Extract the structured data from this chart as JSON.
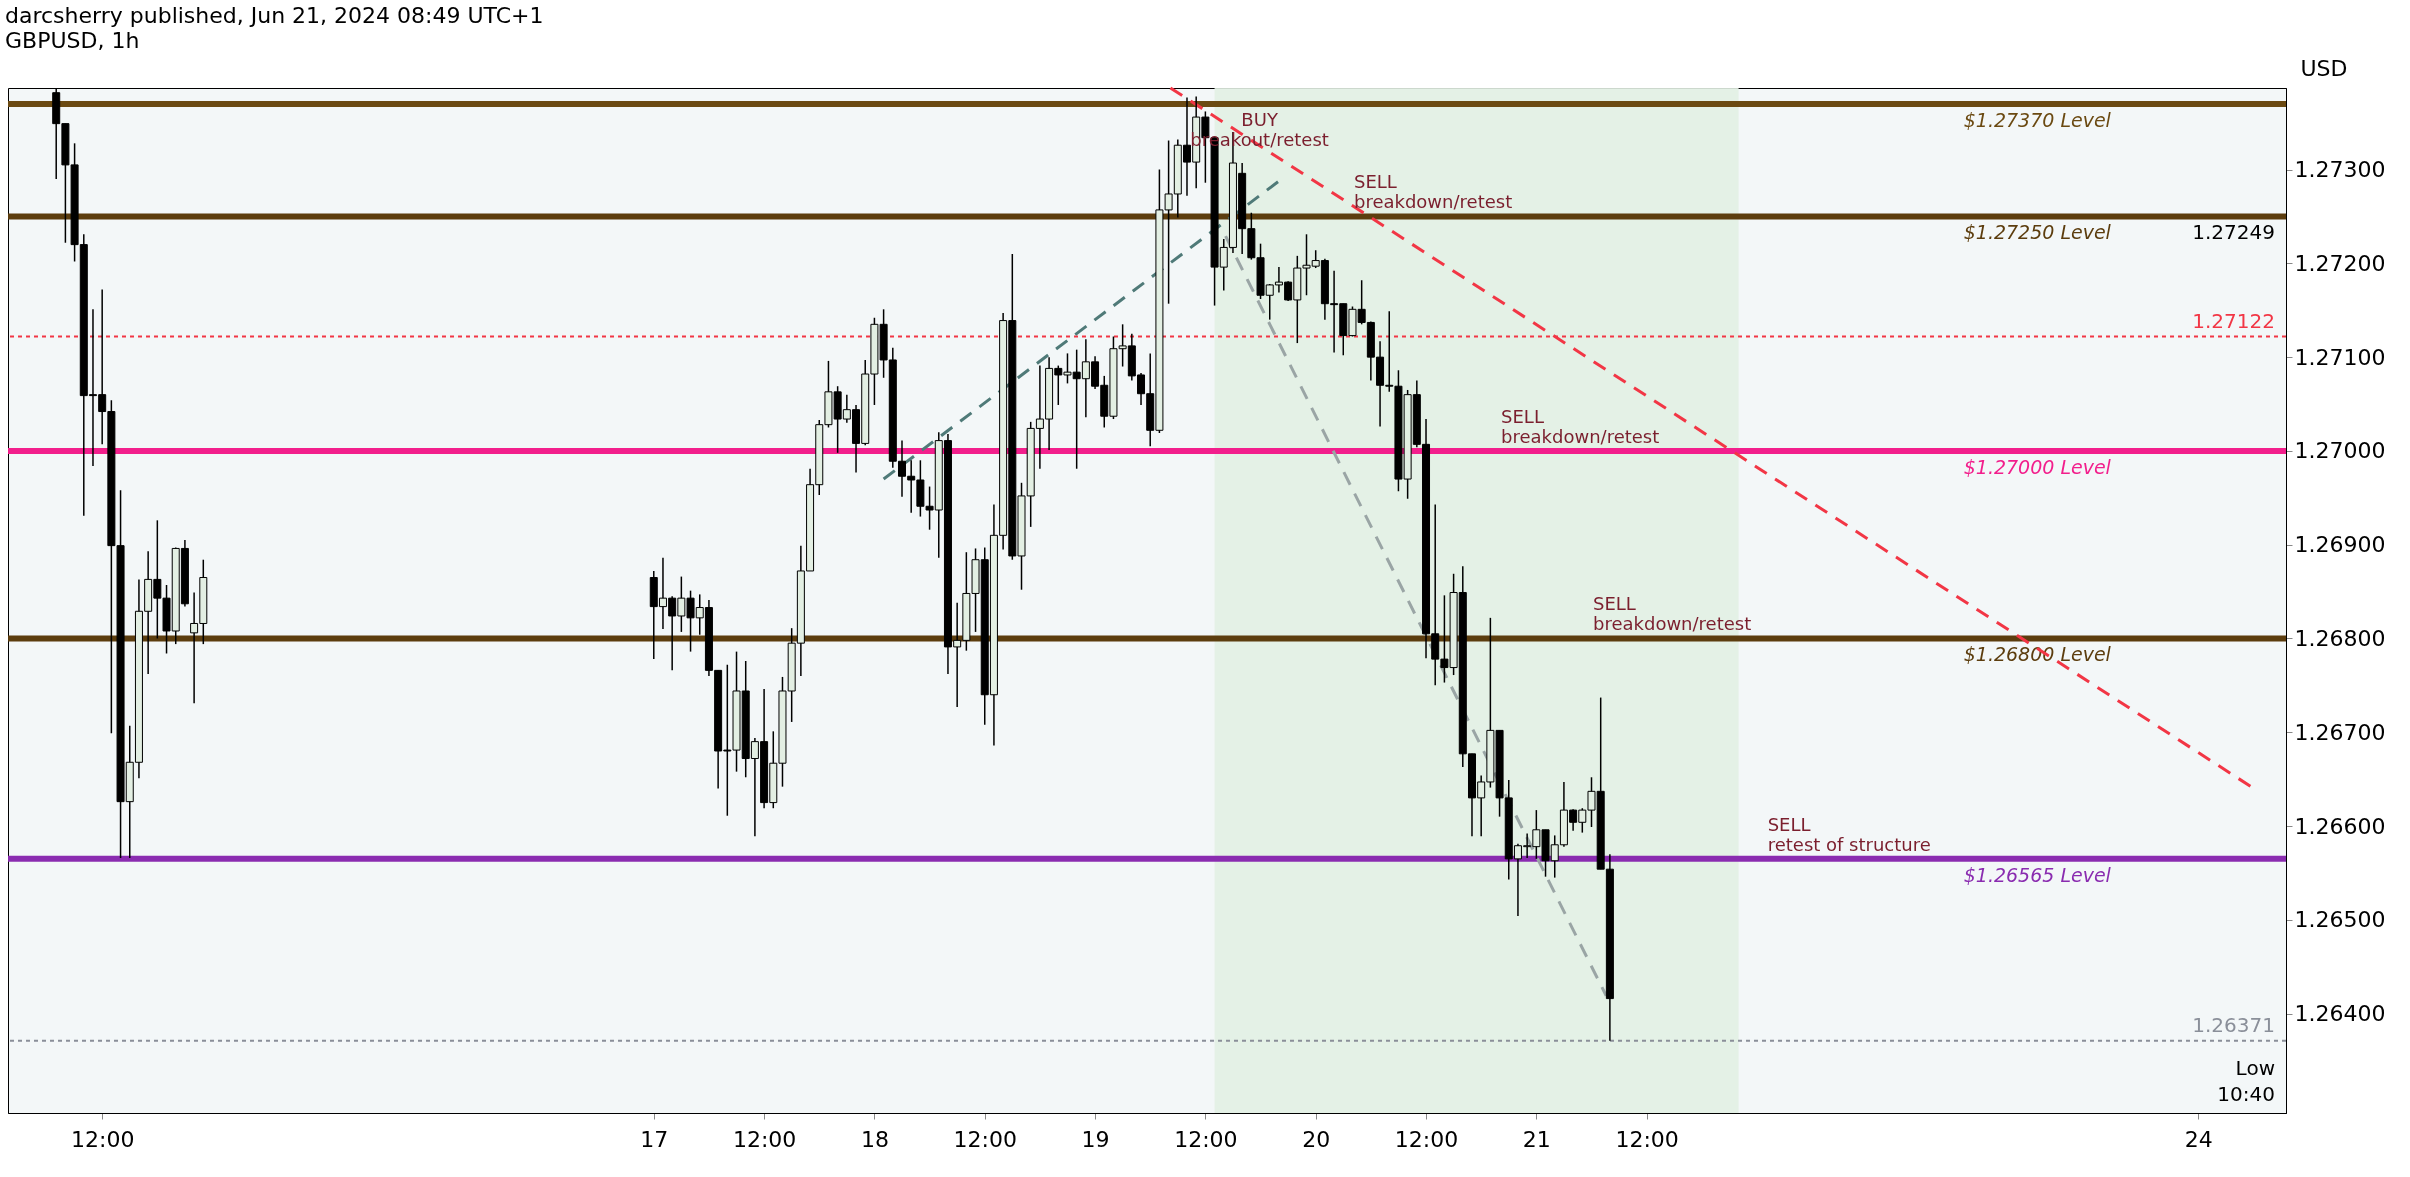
{
  "chart_data": {
    "type": "candlestick",
    "title": "darcsherry published, Jun 21, 2024 08:49 UTC+1",
    "subtitle": "GBPUSD, 1h",
    "ylabel": "USD",
    "x": [
      "2024-06-14T07:00",
      "2024-06-14T08:00",
      "2024-06-14T09:00",
      "2024-06-14T10:00",
      "2024-06-14T11:00",
      "2024-06-14T12:00",
      "2024-06-14T13:00",
      "2024-06-14T14:00",
      "2024-06-14T15:00",
      "2024-06-14T16:00",
      "2024-06-14T17:00",
      "2024-06-14T18:00",
      "2024-06-14T19:00",
      "2024-06-14T20:00",
      "2024-06-14T21:00",
      "2024-06-14T22:00",
      "2024-06-14T23:00",
      "2024-06-17T00:00",
      "2024-06-17T01:00",
      "2024-06-17T02:00",
      "2024-06-17T03:00",
      "2024-06-17T04:00",
      "2024-06-17T05:00",
      "2024-06-17T06:00",
      "2024-06-17T07:00",
      "2024-06-17T08:00",
      "2024-06-17T09:00",
      "2024-06-17T10:00",
      "2024-06-17T11:00",
      "2024-06-17T12:00",
      "2024-06-17T13:00",
      "2024-06-17T14:00",
      "2024-06-17T15:00",
      "2024-06-17T16:00",
      "2024-06-17T17:00",
      "2024-06-17T18:00",
      "2024-06-17T19:00",
      "2024-06-17T20:00",
      "2024-06-17T21:00",
      "2024-06-17T22:00",
      "2024-06-17T23:00",
      "2024-06-18T00:00",
      "2024-06-18T01:00",
      "2024-06-18T02:00",
      "2024-06-18T03:00",
      "2024-06-18T04:00",
      "2024-06-18T05:00",
      "2024-06-18T06:00",
      "2024-06-18T07:00",
      "2024-06-18T08:00",
      "2024-06-18T09:00",
      "2024-06-18T10:00",
      "2024-06-18T11:00",
      "2024-06-18T12:00",
      "2024-06-18T13:00",
      "2024-06-18T14:00",
      "2024-06-18T15:00",
      "2024-06-18T16:00",
      "2024-06-18T17:00",
      "2024-06-18T18:00",
      "2024-06-18T19:00",
      "2024-06-18T20:00",
      "2024-06-18T21:00",
      "2024-06-18T22:00",
      "2024-06-18T23:00",
      "2024-06-19T00:00",
      "2024-06-19T01:00",
      "2024-06-19T02:00",
      "2024-06-19T03:00",
      "2024-06-19T04:00",
      "2024-06-19T05:00",
      "2024-06-19T06:00",
      "2024-06-19T07:00",
      "2024-06-19T08:00",
      "2024-06-19T09:00",
      "2024-06-19T10:00",
      "2024-06-19T11:00",
      "2024-06-19T12:00",
      "2024-06-19T13:00",
      "2024-06-19T14:00",
      "2024-06-19T15:00",
      "2024-06-19T16:00",
      "2024-06-19T17:00",
      "2024-06-19T18:00",
      "2024-06-19T19:00",
      "2024-06-19T20:00",
      "2024-06-19T21:00",
      "2024-06-19T22:00",
      "2024-06-19T23:00",
      "2024-06-20T00:00",
      "2024-06-20T01:00",
      "2024-06-20T02:00",
      "2024-06-20T03:00",
      "2024-06-20T04:00",
      "2024-06-20T05:00",
      "2024-06-20T06:00",
      "2024-06-20T07:00",
      "2024-06-20T08:00",
      "2024-06-20T09:00",
      "2024-06-20T10:00",
      "2024-06-20T11:00",
      "2024-06-20T12:00",
      "2024-06-20T13:00",
      "2024-06-20T14:00",
      "2024-06-20T15:00",
      "2024-06-20T16:00",
      "2024-06-20T17:00",
      "2024-06-20T18:00",
      "2024-06-20T19:00",
      "2024-06-20T20:00",
      "2024-06-20T21:00",
      "2024-06-20T22:00",
      "2024-06-20T23:00",
      "2024-06-21T00:00",
      "2024-06-21T01:00",
      "2024-06-21T02:00",
      "2024-06-21T03:00",
      "2024-06-21T04:00",
      "2024-06-21T05:00",
      "2024-06-21T06:00",
      "2024-06-21T07:00",
      "2024-06-21T08:00"
    ],
    "ohlc": [
      [
        1.27382,
        1.27386,
        1.2729,
        1.27349
      ],
      [
        1.27349,
        1.27349,
        1.27222,
        1.27305
      ],
      [
        1.27305,
        1.27328,
        1.27202,
        1.2722
      ],
      [
        1.2722,
        1.27231,
        1.26931,
        1.27059
      ],
      [
        1.2706,
        1.27151,
        1.26984,
        1.27059
      ],
      [
        1.2706,
        1.27172,
        1.27007,
        1.27042
      ],
      [
        1.27042,
        1.27054,
        1.26699,
        1.26899
      ],
      [
        1.26899,
        1.26958,
        1.26566,
        1.26626
      ],
      [
        1.26626,
        1.26707,
        1.26566,
        1.26668
      ],
      [
        1.26668,
        1.26863,
        1.26651,
        1.26829
      ],
      [
        1.26829,
        1.26893,
        1.26762,
        1.26863
      ],
      [
        1.26863,
        1.26926,
        1.268,
        1.26843
      ],
      [
        1.26843,
        1.26857,
        1.26784,
        1.26808
      ],
      [
        1.26808,
        1.26897,
        1.26794,
        1.26896
      ],
      [
        1.26896,
        1.26905,
        1.26834,
        1.26837
      ],
      [
        1.26806,
        1.26849,
        1.26731,
        1.26816
      ],
      [
        1.26816,
        1.26884,
        1.26794,
        1.26865
      ],
      [
        1.26865,
        1.26872,
        1.26778,
        1.26834
      ],
      [
        1.26834,
        1.26886,
        1.2681,
        1.26843
      ],
      [
        1.26843,
        1.26845,
        1.26766,
        1.26824
      ],
      [
        1.26824,
        1.26866,
        1.26807,
        1.26843
      ],
      [
        1.26843,
        1.26851,
        1.26786,
        1.26822
      ],
      [
        1.26822,
        1.26847,
        1.26804,
        1.26833
      ],
      [
        1.26833,
        1.26841,
        1.2676,
        1.26766
      ],
      [
        1.26766,
        1.26766,
        1.2664,
        1.2668
      ],
      [
        1.26681,
        1.26772,
        1.26611,
        1.2668
      ],
      [
        1.26681,
        1.26786,
        1.26658,
        1.26744
      ],
      [
        1.26744,
        1.26776,
        1.26652,
        1.26672
      ],
      [
        1.26672,
        1.26694,
        1.26589,
        1.2669
      ],
      [
        1.2669,
        1.26746,
        1.26619,
        1.26625
      ],
      [
        1.26625,
        1.26701,
        1.26619,
        1.26667
      ],
      [
        1.26667,
        1.26759,
        1.26642,
        1.26744
      ],
      [
        1.26744,
        1.26811,
        1.26711,
        1.26795
      ],
      [
        1.26795,
        1.26899,
        1.2676,
        1.26872
      ],
      [
        1.26872,
        1.26981,
        1.26872,
        1.26964
      ],
      [
        1.26964,
        1.27033,
        1.26953,
        1.27028
      ],
      [
        1.27028,
        1.27096,
        1.27025,
        1.27063
      ],
      [
        1.27063,
        1.27069,
        1.26998,
        1.27034
      ],
      [
        1.27034,
        1.2706,
        1.2703,
        1.27044
      ],
      [
        1.27044,
        1.27049,
        1.26977,
        1.27008
      ],
      [
        1.27008,
        1.27097,
        1.27006,
        1.27082
      ],
      [
        1.27082,
        1.27142,
        1.27049,
        1.27135
      ],
      [
        1.27135,
        1.27151,
        1.27078,
        1.27097
      ],
      [
        1.27097,
        1.2711,
        1.26982,
        1.26989
      ],
      [
        1.26989,
        1.27011,
        1.26951,
        1.26973
      ],
      [
        1.26973,
        1.2699,
        1.26934,
        1.26969
      ],
      [
        1.26969,
        1.2699,
        1.2693,
        1.26941
      ],
      [
        1.26941,
        1.26962,
        1.26916,
        1.26937
      ],
      [
        1.26937,
        1.2702,
        1.26886,
        1.27011
      ],
      [
        1.27011,
        1.27018,
        1.26762,
        1.26791
      ],
      [
        1.26791,
        1.26838,
        1.26727,
        1.26798
      ],
      [
        1.26798,
        1.26892,
        1.26787,
        1.26848
      ],
      [
        1.26848,
        1.26896,
        1.26807,
        1.26884
      ],
      [
        1.26884,
        1.26897,
        1.26708,
        1.2674
      ],
      [
        1.2674,
        1.26943,
        1.26686,
        1.2691
      ],
      [
        1.2691,
        1.27147,
        1.26895,
        1.27139
      ],
      [
        1.27139,
        1.2721,
        1.26884,
        1.26888
      ],
      [
        1.26888,
        1.26966,
        1.26852,
        1.26952
      ],
      [
        1.26952,
        1.27031,
        1.26919,
        1.27024
      ],
      [
        1.27024,
        1.27091,
        1.26981,
        1.27034
      ],
      [
        1.27034,
        1.271,
        1.27001,
        1.27088
      ],
      [
        1.27088,
        1.27091,
        1.27049,
        1.27081
      ],
      [
        1.27081,
        1.27104,
        1.27072,
        1.27084
      ],
      [
        1.27084,
        1.27108,
        1.26981,
        1.27077
      ],
      [
        1.27077,
        1.27119,
        1.27036,
        1.27095
      ],
      [
        1.27095,
        1.27101,
        1.27066,
        1.27069
      ],
      [
        1.2707,
        1.2708,
        1.27025,
        1.27037
      ],
      [
        1.27037,
        1.27122,
        1.27034,
        1.27109
      ],
      [
        1.27109,
        1.27135,
        1.2709,
        1.27112
      ],
      [
        1.27112,
        1.27125,
        1.27075,
        1.2708
      ],
      [
        1.27081,
        1.27083,
        1.27049,
        1.27061
      ],
      [
        1.27061,
        1.27104,
        1.27005,
        1.27022
      ],
      [
        1.27022,
        1.273,
        1.27019,
        1.27257
      ],
      [
        1.27257,
        1.27331,
        1.27157,
        1.27274
      ],
      [
        1.27274,
        1.27332,
        1.27249,
        1.27326
      ],
      [
        1.27326,
        1.27377,
        1.27272,
        1.27308
      ],
      [
        1.27308,
        1.27378,
        1.2728,
        1.27356
      ],
      [
        1.27356,
        1.27362,
        1.27286,
        1.27334
      ],
      [
        1.27334,
        1.27334,
        1.27155,
        1.27196
      ],
      [
        1.27196,
        1.27226,
        1.27171,
        1.27217
      ],
      [
        1.27217,
        1.2734,
        1.27211,
        1.27307
      ],
      [
        1.27296,
        1.27307,
        1.2721,
        1.27237
      ],
      [
        1.27237,
        1.27254,
        1.27204,
        1.27206
      ],
      [
        1.27206,
        1.27221,
        1.27162,
        1.27166
      ],
      [
        1.27166,
        1.27178,
        1.2714,
        1.27177
      ],
      [
        1.27177,
        1.27196,
        1.27169,
        1.2718
      ],
      [
        1.2718,
        1.27181,
        1.2716,
        1.27161
      ],
      [
        1.27161,
        1.27208,
        1.27115,
        1.27195
      ],
      [
        1.27195,
        1.27231,
        1.27166,
        1.27198
      ],
      [
        1.27197,
        1.27214,
        1.27195,
        1.27203
      ],
      [
        1.27203,
        1.27205,
        1.2714,
        1.27157
      ],
      [
        1.27157,
        1.27192,
        1.27105,
        1.27156
      ],
      [
        1.27157,
        1.27157,
        1.27102,
        1.27123
      ],
      [
        1.27123,
        1.27154,
        1.27122,
        1.27151
      ],
      [
        1.27151,
        1.27182,
        1.27135,
        1.27137
      ],
      [
        1.27137,
        1.27138,
        1.27075,
        1.271
      ],
      [
        1.271,
        1.27117,
        1.27026,
        1.2707
      ],
      [
        1.2707,
        1.27149,
        1.27063,
        1.27069
      ],
      [
        1.27069,
        1.27086,
        1.26957,
        1.2697
      ],
      [
        1.2697,
        1.27065,
        1.26949,
        1.2706
      ],
      [
        1.2706,
        1.27075,
        1.27004,
        1.27007
      ],
      [
        1.27007,
        1.27034,
        1.26779,
        1.26805
      ],
      [
        1.26805,
        1.26943,
        1.2675,
        1.26778
      ],
      [
        1.26778,
        1.26846,
        1.26753,
        1.26769
      ],
      [
        1.26769,
        1.26869,
        1.26761,
        1.26849
      ],
      [
        1.26849,
        1.26877,
        1.26663,
        1.26677
      ],
      [
        1.26677,
        1.26677,
        1.26589,
        1.2663
      ],
      [
        1.2663,
        1.26654,
        1.26589,
        1.26647
      ],
      [
        1.26647,
        1.26822,
        1.26641,
        1.26702
      ],
      [
        1.26702,
        1.26702,
        1.2661,
        1.2663
      ],
      [
        1.2663,
        1.26649,
        1.26543,
        1.26565
      ],
      [
        1.26565,
        1.26581,
        1.26504,
        1.26579
      ],
      [
        1.26578,
        1.26592,
        1.26566,
        1.26579
      ],
      [
        1.26578,
        1.26617,
        1.26565,
        1.26596
      ],
      [
        1.26596,
        1.26596,
        1.26546,
        1.26563
      ],
      [
        1.26563,
        1.2659,
        1.26545,
        1.2658
      ],
      [
        1.2658,
        1.26647,
        1.26578,
        1.26617
      ],
      [
        1.26617,
        1.26618,
        1.26595,
        1.26604
      ],
      [
        1.26604,
        1.26619,
        1.26593,
        1.26617
      ],
      [
        1.26617,
        1.26652,
        1.26599,
        1.26637
      ],
      [
        1.26637,
        1.26737,
        1.26554,
        1.26554
      ],
      [
        1.26554,
        1.2657,
        1.26371,
        1.26416
      ]
    ],
    "colors": [
      "#000000",
      "#000000",
      "#000000",
      "#000000",
      "#000000",
      "#000000",
      "#000000",
      "#000000",
      "#e3efe3",
      "#e3efe3",
      "#e3efe3",
      "#000000",
      "#000000",
      "#e3efe3",
      "#000000",
      "#e3efe3",
      "#e3efe3",
      "#000000",
      "#e3efe3",
      "#000000",
      "#e3efe3",
      "#000000",
      "#e3efe3",
      "#000000",
      "#000000",
      "#000000",
      "#e3efe3",
      "#000000",
      "#e3efe3",
      "#000000",
      "#e3efe3",
      "#e3efe3",
      "#e3efe3",
      "#e3efe3",
      "#e3efe3",
      "#e3efe3",
      "#e3efe3",
      "#000000",
      "#e3efe3",
      "#000000",
      "#e3efe3",
      "#e3efe3",
      "#000000",
      "#000000",
      "#000000",
      "#000000",
      "#000000",
      "#000000",
      "#e3efe3",
      "#000000",
      "#e3efe3",
      "#e3efe3",
      "#e3efe3",
      "#000000",
      "#e3efe3",
      "#e3efe3",
      "#000000",
      "#e3efe3",
      "#e3efe3",
      "#e3efe3",
      "#e3efe3",
      "#000000",
      "#e3efe3",
      "#000000",
      "#e3efe3",
      "#000000",
      "#000000",
      "#e3efe3",
      "#e3efe3",
      "#000000",
      "#000000",
      "#000000",
      "#e3efe3",
      "#e3efe3",
      "#e3efe3",
      "#000000",
      "#e3efe3",
      "#000000",
      "#000000",
      "#e3efe3",
      "#e3efe3",
      "#000000",
      "#000000",
      "#000000",
      "#e3efe3",
      "#e3efe3",
      "#000000",
      "#e3efe3",
      "#e3efe3",
      "#e3efe3",
      "#000000",
      "#000000",
      "#000000",
      "#e3efe3",
      "#000000",
      "#000000",
      "#000000",
      "#000000",
      "#000000",
      "#e3efe3",
      "#000000",
      "#000000",
      "#000000",
      "#000000",
      "#e3efe3",
      "#000000",
      "#000000",
      "#e3efe3",
      "#e3efe3",
      "#000000",
      "#000000",
      "#e3efe3",
      "#e3efe3",
      "#e3efe3",
      "#000000",
      "#e3efe3",
      "#e3efe3",
      "#000000",
      "#e3efe3",
      "#e3efe3",
      "#000000",
      "#000000"
    ],
    "series": [
      {
        "type": "line",
        "x": [
          "2024-06-19T08:12",
          "2024-06-24T05:54"
        ],
        "values": [
          1.27387,
          1.26641
        ],
        "color": "#f23645",
        "line_style": "dashed"
      },
      {
        "type": "line",
        "x": [
          "2024-06-18T01:00",
          "2024-06-19T19:54"
        ],
        "values": [
          1.2697,
          1.27287
        ],
        "color": "#4f7a78",
        "line_style": "dashed"
      },
      {
        "type": "line",
        "x": [
          "2024-06-19T14:12",
          "2024-06-21T07:36"
        ],
        "values": [
          1.27229,
          1.26419
        ],
        "color": "#9aa5a5",
        "line_style": "dashed"
      }
    ],
    "xlim": [
      "2024-06-14T02:18",
      "2024-06-24T09:00"
    ],
    "xticks": [
      {
        "value": "2024-06-14T12:00",
        "label": "12:00"
      },
      {
        "value": "2024-06-17T00:00",
        "label": "17"
      },
      {
        "value": "2024-06-17T12:00",
        "label": "12:00"
      },
      {
        "value": "2024-06-18T00:00",
        "label": "18"
      },
      {
        "value": "2024-06-18T12:00",
        "label": "12:00"
      },
      {
        "value": "2024-06-19T00:00",
        "label": "19"
      },
      {
        "value": "2024-06-19T12:00",
        "label": "12:00"
      },
      {
        "value": "2024-06-20T00:00",
        "label": "20"
      },
      {
        "value": "2024-06-20T12:00",
        "label": "12:00"
      },
      {
        "value": "2024-06-21T00:00",
        "label": "21"
      },
      {
        "value": "2024-06-21T12:00",
        "label": "12:00"
      },
      {
        "value": "2024-06-24T00:00",
        "label": "24"
      }
    ],
    "ylim": [
      1.26294,
      1.27387
    ],
    "yticks": [
      {
        "value": 1.264,
        "label": "1.26400"
      },
      {
        "value": 1.265,
        "label": "1.26500"
      },
      {
        "value": 1.266,
        "label": "1.26600"
      },
      {
        "value": 1.267,
        "label": "1.26700"
      },
      {
        "value": 1.268,
        "label": "1.26800"
      },
      {
        "value": 1.269,
        "label": "1.26900"
      },
      {
        "value": 1.27,
        "label": "1.27000"
      },
      {
        "value": 1.271,
        "label": "1.27100"
      },
      {
        "value": 1.272,
        "label": "1.27200"
      },
      {
        "value": 1.273,
        "label": "1.27300"
      }
    ],
    "ref_lines": [
      {
        "axis": "y",
        "value": 1.2737,
        "label": "$1.27370 Level",
        "color": "#6b4a12",
        "line_style": "solid"
      },
      {
        "axis": "y",
        "value": 1.2725,
        "label": "$1.27250 Level",
        "color": "#5c3d0e",
        "line_style": "solid"
      },
      {
        "axis": "y",
        "value": 1.27,
        "label": "$1.27000 Level",
        "color": "#f21f8c",
        "line_style": "solid"
      },
      {
        "axis": "y",
        "value": 1.268,
        "label": "$1.26800 Level",
        "color": "#5c3d0e",
        "line_style": "solid"
      },
      {
        "axis": "y",
        "value": 1.26565,
        "label": "$1.26565 Level",
        "color": "#8a2cb0",
        "line_style": "solid"
      },
      {
        "axis": "y",
        "value": 1.27122,
        "label": "1.27122",
        "color": "#f23645",
        "line_style": "dotted"
      },
      {
        "axis": "y",
        "value": 1.26371,
        "label": "1.26371",
        "color": "#8a8f99",
        "line_style": "dotted"
      }
    ],
    "bands": [
      {
        "axis": "x",
        "from": "2024-06-19T13:00",
        "to": "2024-06-21T22:00",
        "color": "#e2efe3"
      }
    ],
    "annotations": [
      {
        "text": "BUY\nbreakout/retest",
        "x": "2024-06-19T17:54",
        "y": 1.2737
      },
      {
        "text": "SELL\nbreakdown/retest",
        "x": "2024-06-20T00:54",
        "y": 1.2725
      },
      {
        "text": "SELL\nbreakdown/retest",
        "x": "2024-06-20T16:54",
        "y": 1.27
      },
      {
        "text": "SELL\nbreakdown/retest",
        "x": "2024-06-21T02:54",
        "y": 1.268
      },
      {
        "text": "SELL\nretest of structure",
        "x": "2024-06-21T21:54",
        "y": 1.26565
      },
      {
        "text": "1.27249",
        "y": 1.27249
      },
      "10:40",
      "Low"
    ]
  }
}
